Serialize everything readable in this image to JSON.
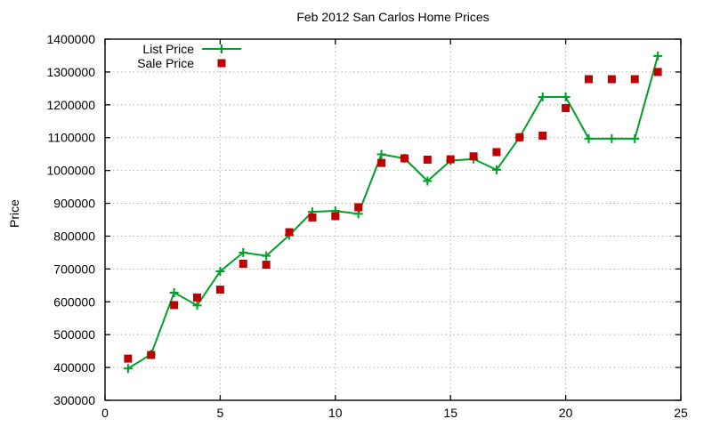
{
  "page": {
    "background": "#ffffff"
  },
  "chart_data": {
    "type": "line",
    "title": "Feb 2012 San Carlos Home Prices",
    "xlabel": "",
    "ylabel": "Price",
    "xlim": [
      0,
      25
    ],
    "ylim": [
      300000,
      1400000
    ],
    "x_ticks": [
      0,
      5,
      10,
      15,
      20,
      25
    ],
    "y_ticks": [
      300000,
      400000,
      500000,
      600000,
      700000,
      800000,
      900000,
      1000000,
      1100000,
      1200000,
      1300000,
      1400000
    ],
    "grid": true,
    "grid_color": "#b0b0b0",
    "legend_position": "top-left-inside",
    "x": [
      1,
      2,
      3,
      4,
      5,
      6,
      7,
      8,
      9,
      10,
      11,
      12,
      13,
      14,
      15,
      16,
      17,
      18,
      19,
      20,
      21,
      22,
      23,
      24
    ],
    "series": [
      {
        "name": "List Price",
        "type": "line",
        "marker": "plus",
        "color": "#00a028",
        "values": [
          397000,
          440000,
          628000,
          589000,
          693000,
          750000,
          740000,
          803000,
          874000,
          877000,
          868000,
          1049000,
          1037000,
          968000,
          1030000,
          1035000,
          1002000,
          1101000,
          1224000,
          1224000,
          1097000,
          1097000,
          1097000,
          1349000
        ]
      },
      {
        "name": "Sale Price",
        "type": "scatter",
        "marker": "square",
        "color": "#c00000",
        "values": [
          427000,
          438000,
          590000,
          613000,
          637000,
          716000,
          713000,
          812000,
          857000,
          861000,
          888000,
          1023000,
          1037000,
          1033000,
          1034000,
          1043000,
          1056000,
          1101000,
          1106000,
          1190000,
          1278000,
          1278000,
          1278000,
          1300000
        ]
      }
    ]
  }
}
